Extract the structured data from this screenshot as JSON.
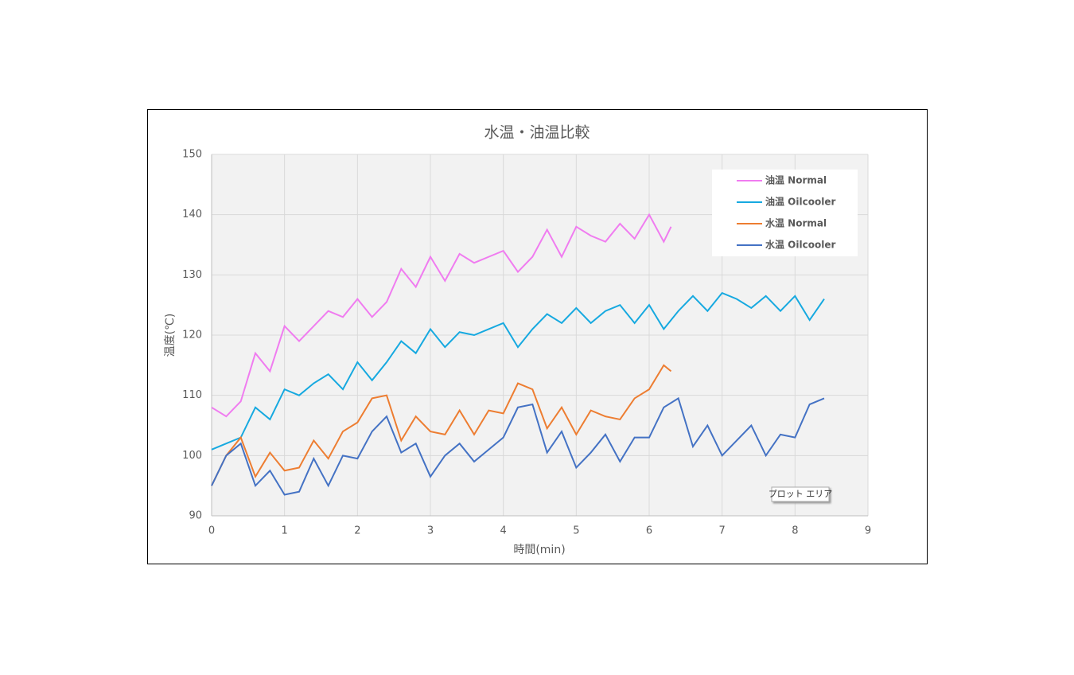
{
  "chart_data": {
    "type": "line",
    "title": "水温・油温比較",
    "xlabel": "時間(min)",
    "ylabel": "温度(℃)",
    "xlim": [
      0,
      9
    ],
    "xticks": [
      0,
      1,
      2,
      3,
      4,
      5,
      6,
      7,
      8,
      9
    ],
    "ylim": [
      90,
      150
    ],
    "yticks": [
      90,
      100,
      110,
      120,
      130,
      140,
      150
    ],
    "grid": true,
    "legend": "upper right",
    "series": [
      {
        "name": "油温 Normal",
        "color": "#f07cf0",
        "x": [
          0,
          0.2,
          0.4,
          0.6,
          0.8,
          1.0,
          1.2,
          1.4,
          1.6,
          1.8,
          2.0,
          2.2,
          2.4,
          2.6,
          2.8,
          3.0,
          3.2,
          3.4,
          3.6,
          3.8,
          4.0,
          4.2,
          4.4,
          4.6,
          4.8,
          5.0,
          5.2,
          5.4,
          5.6,
          5.8,
          6.0,
          6.2,
          6.3
        ],
        "values": [
          108,
          106.5,
          109,
          117,
          114,
          121.5,
          119,
          121.5,
          124,
          123,
          126,
          123,
          125.5,
          131,
          128,
          133,
          129,
          133.5,
          132,
          133,
          134,
          130.5,
          133,
          137.5,
          133,
          138,
          136.5,
          135.5,
          138.5,
          136,
          140,
          135.5,
          138
        ]
      },
      {
        "name": "油温 Oilcooler",
        "color": "#16a9e0",
        "x": [
          0,
          0.2,
          0.4,
          0.6,
          0.8,
          1.0,
          1.2,
          1.4,
          1.6,
          1.8,
          2.0,
          2.2,
          2.4,
          2.6,
          2.8,
          3.0,
          3.2,
          3.4,
          3.6,
          3.8,
          4.0,
          4.2,
          4.4,
          4.6,
          4.8,
          5.0,
          5.2,
          5.4,
          5.6,
          5.8,
          6.0,
          6.2,
          6.4,
          6.6,
          6.8,
          7.0,
          7.2,
          7.4,
          7.6,
          7.8,
          8.0,
          8.2,
          8.4
        ],
        "values": [
          101,
          102,
          103,
          108,
          106,
          111,
          110,
          112,
          113.5,
          111,
          115.5,
          112.5,
          115.5,
          119,
          117,
          121,
          118,
          120.5,
          120,
          121,
          122,
          118,
          121,
          123.5,
          122,
          124.5,
          122,
          124,
          125,
          122,
          125,
          121,
          124,
          126.5,
          124,
          127,
          126,
          124.5,
          126.5,
          124,
          126.5,
          122.5,
          126
        ]
      },
      {
        "name": "水温 Normal",
        "color": "#ed7d31",
        "x": [
          0,
          0.2,
          0.4,
          0.6,
          0.8,
          1.0,
          1.2,
          1.4,
          1.6,
          1.8,
          2.0,
          2.2,
          2.4,
          2.6,
          2.8,
          3.0,
          3.2,
          3.4,
          3.6,
          3.8,
          4.0,
          4.2,
          4.4,
          4.6,
          4.8,
          5.0,
          5.2,
          5.4,
          5.6,
          5.8,
          6.0,
          6.2,
          6.3
        ],
        "values": [
          95,
          100,
          103,
          96.5,
          100.5,
          97.5,
          98,
          102.5,
          99.5,
          104,
          105.5,
          109.5,
          110,
          102.5,
          106.5,
          104,
          103.5,
          107.5,
          103.5,
          107.5,
          107,
          112,
          111,
          104.5,
          108,
          103.5,
          107.5,
          106.5,
          106,
          109.5,
          111,
          115,
          114
        ]
      },
      {
        "name": "水温 Oilcooler",
        "color": "#4472c4",
        "x": [
          0,
          0.2,
          0.4,
          0.6,
          0.8,
          1.0,
          1.2,
          1.4,
          1.6,
          1.8,
          2.0,
          2.2,
          2.4,
          2.6,
          2.8,
          3.0,
          3.2,
          3.4,
          3.6,
          3.8,
          4.0,
          4.2,
          4.4,
          4.6,
          4.8,
          5.0,
          5.2,
          5.4,
          5.6,
          5.8,
          6.0,
          6.2,
          6.4,
          6.6,
          6.8,
          7.0,
          7.2,
          7.4,
          7.6,
          7.8,
          8.0,
          8.2,
          8.4
        ],
        "values": [
          95,
          100,
          102,
          95,
          97.5,
          93.5,
          94,
          99.5,
          95,
          100,
          99.5,
          104,
          106.5,
          100.5,
          102,
          96.5,
          100,
          102,
          99,
          101,
          103,
          108,
          108.5,
          100.5,
          104,
          98,
          100.5,
          103.5,
          99,
          103,
          103,
          108,
          109.5,
          101.5,
          105,
          100,
          102.5,
          105,
          100,
          103.5,
          103,
          108.5,
          109.5
        ]
      }
    ]
  },
  "tooltip": "プロット エリア"
}
